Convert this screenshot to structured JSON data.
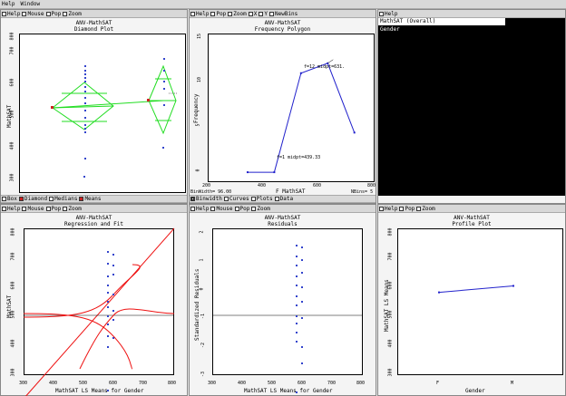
{
  "menubar": {
    "items": [
      "Help",
      "Window"
    ]
  },
  "diamond": {
    "toolbar": [
      "Help",
      "Mouse",
      "Pop",
      "Zoom"
    ],
    "title1": "ANV-MathSAT",
    "title2": "Diamond Plot",
    "ylabel": "MathSAT",
    "yticks": [
      "300",
      "400",
      "500",
      "600",
      "700",
      "800"
    ],
    "bottom": [
      {
        "label": "Box",
        "on": false
      },
      {
        "label": "Diamond",
        "on": true
      },
      {
        "label": "Medians",
        "on": false
      },
      {
        "label": "Means",
        "on": true
      }
    ]
  },
  "freq": {
    "toolbar": [
      "Help",
      "Pop",
      "Zoom",
      "X",
      "Y",
      "NewBins"
    ],
    "title1": "ANV-MathSAT",
    "title2": "Frequency Polygon",
    "ylabel": "Frequency",
    "xlabel": "F MathSAT",
    "yticks": [
      "0",
      "5",
      "10",
      "15"
    ],
    "xticks": [
      "200",
      "400",
      "600",
      "800"
    ],
    "ann_top": "f=12 midpt=631.",
    "ann_bot": "f=1 midpt=439.33",
    "binwidth": "BinWidth= 96.00",
    "nbins": "NBins= 5",
    "bottom": [
      {
        "label": "Binwidth",
        "on": true
      },
      {
        "label": "Curves",
        "on": false
      },
      {
        "label": "Plots",
        "on": false
      },
      {
        "label": "Data",
        "on": false
      }
    ],
    "chart_data": {
      "type": "line",
      "x": [
        343.33,
        439.33,
        535.33,
        631.33,
        727.33
      ],
      "y": [
        1,
        1,
        11,
        12,
        5
      ],
      "title": "Frequency Polygon",
      "xlabel": "F MathSAT",
      "ylabel": "Frequency",
      "xlim": [
        200,
        800
      ],
      "ylim": [
        0,
        15
      ]
    }
  },
  "text": {
    "toolbar": [
      "Help"
    ],
    "line1": "MathSAT (Overall)",
    "line2": "Gender"
  },
  "regress": {
    "toolbar": [
      "Help",
      "Mouse",
      "Pop",
      "Zoom"
    ],
    "title1": "ANV-MathSAT",
    "title2": "Regression and Fit",
    "ylabel": "MathSAT",
    "xlabel": "MathSAT LS Means for Gender",
    "yticks": [
      "300",
      "400",
      "500",
      "600",
      "700",
      "800"
    ],
    "xticks": [
      "300",
      "400",
      "500",
      "600",
      "700",
      "800"
    ]
  },
  "resid": {
    "toolbar": [
      "Help",
      "Mouse",
      "Pop",
      "Zoom"
    ],
    "title1": "ANV-MathSAT",
    "title2": "Residuals",
    "ylabel": "Standardized Residuals",
    "xlabel": "MathSAT LS Means for Gender",
    "yticks": [
      "-3",
      "-2",
      "-1",
      "0",
      "1",
      "2"
    ],
    "xticks": [
      "300",
      "400",
      "500",
      "600",
      "700",
      "800"
    ]
  },
  "profile": {
    "toolbar": [
      "Help",
      "Pop",
      "Zoom"
    ],
    "title1": "ANV-MathSAT",
    "title2": "Profile Plot",
    "ylabel": "MathSAT LS Means",
    "xlabel": "Gender",
    "yticks": [
      "300",
      "400",
      "500",
      "600",
      "700",
      "800"
    ],
    "xticks": [
      "F",
      "M"
    ],
    "chart_data": {
      "type": "line",
      "categories": [
        "F",
        "M"
      ],
      "values": [
        582,
        604
      ],
      "title": "Profile Plot",
      "xlabel": "Gender",
      "ylabel": "MathSAT LS Means",
      "ylim": [
        300,
        800
      ]
    }
  },
  "colors": {
    "diamond": "#22dd22",
    "line": "#2222cc",
    "fit": "#ee1111",
    "points": "#3344cc"
  }
}
